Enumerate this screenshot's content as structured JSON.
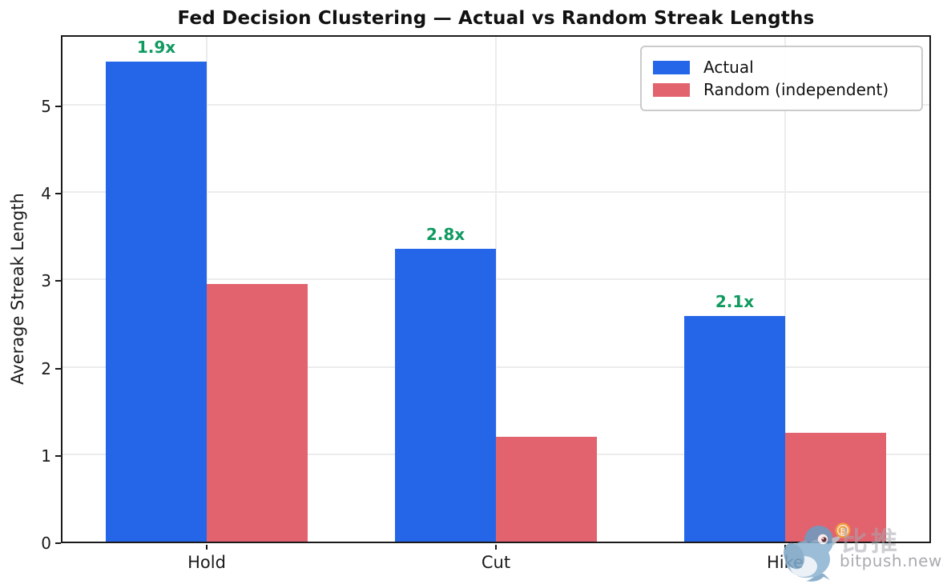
{
  "chart_data": {
    "type": "bar",
    "title": "Fed Decision Clustering — Actual vs Random Streak Lengths",
    "ylabel": "Average Streak Length",
    "xlabel": "",
    "categories": [
      "Hold",
      "Cut",
      "Hike"
    ],
    "series": [
      {
        "name": "Actual",
        "color": "#2566e8",
        "values": [
          5.5,
          3.35,
          2.58
        ]
      },
      {
        "name": "Random (independent)",
        "color": "#e2626e",
        "values": [
          2.95,
          1.2,
          1.25
        ]
      }
    ],
    "annotations": [
      {
        "category": "Hold",
        "label": "1.9x"
      },
      {
        "category": "Cut",
        "label": "2.8x"
      },
      {
        "category": "Hike",
        "label": "2.1x"
      }
    ],
    "annotation_color": "#119a60",
    "yticks": [
      0,
      1,
      2,
      3,
      4,
      5
    ],
    "ylim": [
      0,
      5.78
    ],
    "grid": true,
    "legend_position": "upper right",
    "bar_width_ratio": 0.35
  },
  "watermark": {
    "bird_icon": "twitter-bird-with-bitcoin",
    "cjk_text": "比推",
    "site_text": "bitpush.news"
  }
}
